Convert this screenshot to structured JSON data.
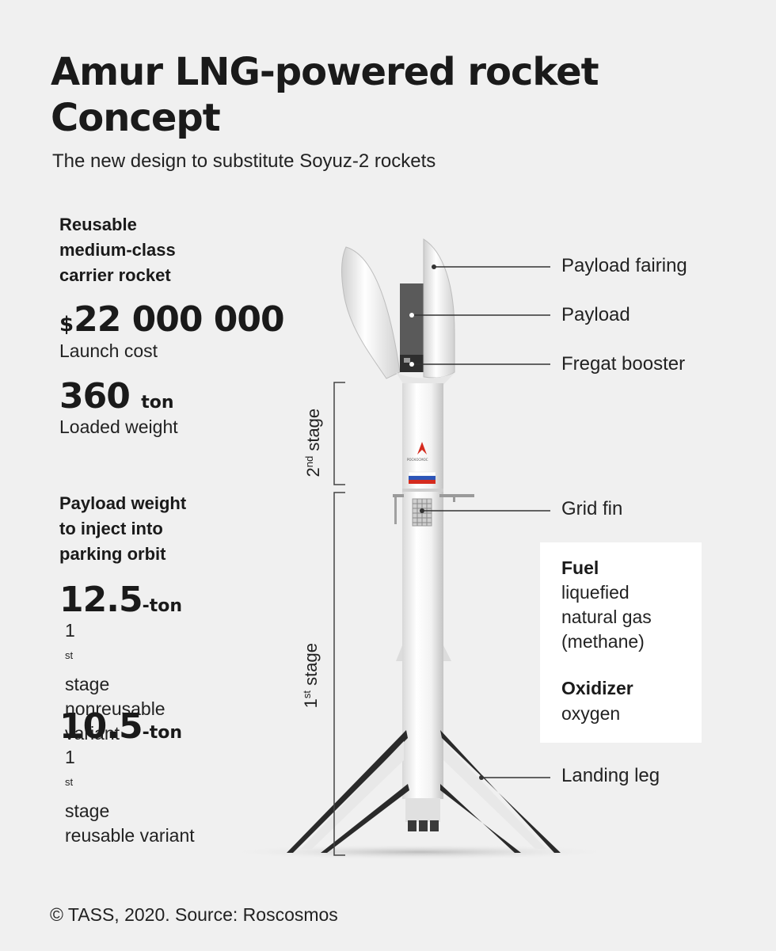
{
  "title": {
    "line1": "Amur LNG-powered rocket",
    "line2": "Concept"
  },
  "subtitle": "The new design to substitute Soyuz-2 rockets",
  "specs": {
    "class_heading": [
      "Reusable",
      "medium-class",
      "carrier rocket"
    ],
    "launch_cost": {
      "currency": "$",
      "value": "22 000 000",
      "label": "Launch cost"
    },
    "loaded_weight": {
      "value": "360",
      "unit": "ton",
      "label": "Loaded weight"
    },
    "payload_heading": [
      "Payload weight",
      "to inject into",
      "parking orbit"
    ],
    "variants": [
      {
        "value": "12.5",
        "unit": "-ton",
        "ordinal": "1",
        "ordinal_suffix": "st",
        "stage_word": " stage",
        "desc": [
          "nonreusable",
          "variant"
        ]
      },
      {
        "value": "10.5",
        "unit": "-ton",
        "ordinal": "1",
        "ordinal_suffix": "st",
        "stage_word": " stage",
        "desc": [
          "reusable variant"
        ]
      }
    ]
  },
  "callouts": {
    "payload_fairing": "Payload fairing",
    "payload": "Payload",
    "fregat_booster": "Fregat booster",
    "grid_fin": "Grid fin",
    "landing_leg": "Landing leg"
  },
  "stages": {
    "second": {
      "ordinal": "2",
      "suffix": "nd",
      "word": " stage"
    },
    "first": {
      "ordinal": "1",
      "suffix": "st",
      "word": " stage"
    }
  },
  "fuel_box": {
    "fuel_heading": "Fuel",
    "fuel_lines": [
      "liquefied",
      "natural gas",
      "(methane)"
    ],
    "oxidizer_heading": "Oxidizer",
    "oxidizer_value": "oxygen"
  },
  "rocket_logo_text": "РОСКОСМОС",
  "footer": "© TASS, 2020. Source: Roscosmos",
  "colors": {
    "background": "#f0f0f0",
    "rocket_body": "#f7f7f7",
    "rocket_shadow": "#c8c8c8",
    "legs": "#2a2a2a",
    "payload": "#555555",
    "flag_white": "#ffffff",
    "flag_blue": "#2c55b8",
    "flag_red": "#d52b1e",
    "logo_red": "#d52b1e"
  }
}
